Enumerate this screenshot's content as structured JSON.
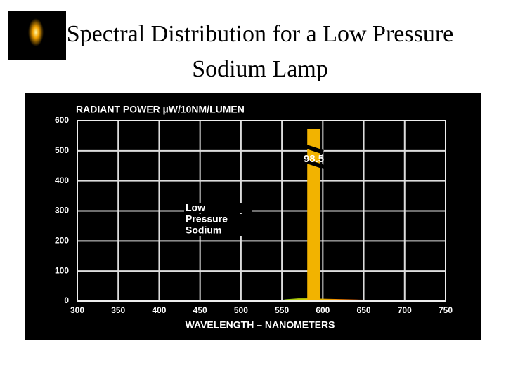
{
  "chart_data": {
    "type": "spectrum",
    "title": "Spectral Distribution for a Low Pressure Sodium Lamp",
    "y_label": "RADIANT POWER µW/10NM/LUMEN",
    "x_label": "WAVELENGTH – NANOMETERS",
    "xlim": [
      300,
      750
    ],
    "xticks": [
      300,
      350,
      400,
      450,
      500,
      550,
      600,
      650,
      700,
      750
    ],
    "ylim": [
      0,
      600
    ],
    "yticks": [
      0,
      100,
      200,
      300,
      400,
      500,
      600
    ],
    "grid": true,
    "x": [
      540,
      555,
      570,
      585,
      600,
      615,
      630,
      645,
      660,
      675,
      690
    ],
    "values": [
      0,
      6,
      9,
      9,
      8,
      7,
      6,
      5,
      4,
      2,
      0
    ],
    "spike": {
      "x": [
        581,
        597
      ],
      "value": 572,
      "color": "#f2b300"
    },
    "annotations": [
      "98.5"
    ],
    "legend_text": [
      "Low",
      "Pressure",
      "Sodium"
    ]
  }
}
